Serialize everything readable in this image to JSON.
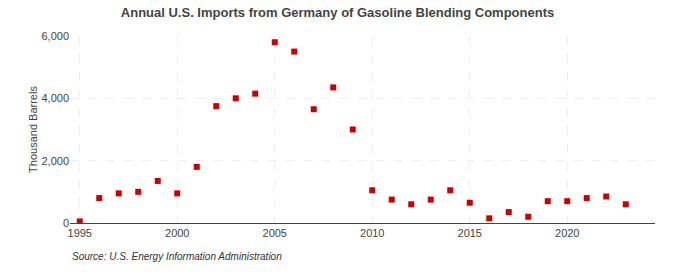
{
  "chart_data": {
    "type": "scatter",
    "title": "Annual U.S. Imports from Germany of Gasoline Blending Components",
    "ylabel": "Thousand Barrels",
    "annotations": [
      "Source: U.S. Energy Information Administration"
    ],
    "x": [
      1995,
      1996,
      1997,
      1998,
      1999,
      2000,
      2001,
      2002,
      2003,
      2004,
      2005,
      2006,
      2007,
      2008,
      2009,
      2010,
      2011,
      2012,
      2013,
      2014,
      2015,
      2016,
      2017,
      2018,
      2019,
      2020,
      2021,
      2022,
      2023
    ],
    "values": [
      50,
      800,
      950,
      1000,
      1350,
      950,
      1800,
      3750,
      4000,
      4150,
      5800,
      5500,
      3650,
      4350,
      3000,
      1050,
      750,
      600,
      750,
      1050,
      650,
      150,
      350,
      200,
      700,
      700,
      800,
      850,
      600
    ],
    "color": "#cc0000",
    "marker": "square",
    "xlim": [
      1994.5,
      2024.5
    ],
    "xticks": [
      1995,
      2000,
      2005,
      2010,
      2015,
      2020
    ],
    "ylim": [
      0,
      6000
    ],
    "yticks": [
      0,
      {
        "value": 2000,
        "label": "2,000"
      },
      {
        "value": 4000,
        "label": "4,000"
      },
      {
        "value": 6000,
        "label": "6,000"
      }
    ],
    "grid": true
  }
}
